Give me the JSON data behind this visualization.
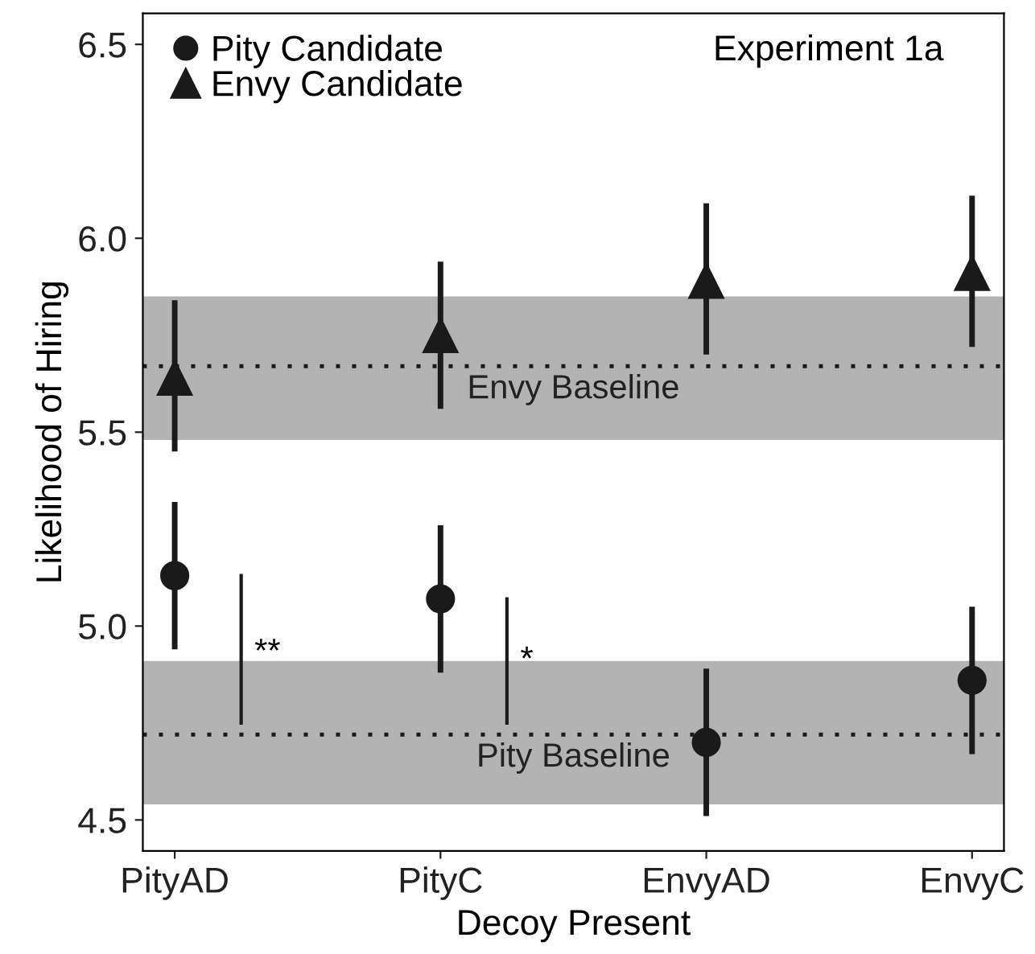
{
  "chart_data": {
    "type": "scatter",
    "title": "Experiment 1a",
    "xlabel": "Decoy Present",
    "ylabel": "Likelihood of Hiring",
    "categories": [
      "PityAD",
      "PityC",
      "EnvyAD",
      "EnvyC"
    ],
    "series": [
      {
        "name": "Pity Candidate",
        "color": "#1a1a1a",
        "marker": "circle",
        "values": [
          5.13,
          5.07,
          4.7,
          4.86
        ],
        "errors": [
          [
            4.94,
            5.32
          ],
          [
            4.88,
            5.26
          ],
          [
            4.51,
            4.89
          ],
          [
            4.67,
            5.05
          ]
        ]
      },
      {
        "name": "Envy Candidate",
        "color": "#1a1a1a",
        "marker": "triangle",
        "values": [
          5.64,
          5.75,
          5.89,
          5.91
        ],
        "errors": [
          [
            5.45,
            5.84
          ],
          [
            5.56,
            5.94
          ],
          [
            5.7,
            6.09
          ],
          [
            5.72,
            6.11
          ]
        ]
      }
    ],
    "ylim": [
      4.42,
      6.58
    ],
    "yticks": [
      4.5,
      {
        "value": 5,
        "label": "5.0"
      },
      5.5,
      {
        "value": 6,
        "label": "6.0"
      },
      6.5
    ],
    "ref_lines": [
      {
        "axis": "y",
        "value": 5.67,
        "label": "Envy Baseline",
        "color": "#1a1a1a",
        "line_style": "dotted"
      },
      {
        "axis": "y",
        "value": 4.72,
        "label": "Pity Baseline",
        "color": "#1a1a1a",
        "line_style": "dotted"
      }
    ],
    "bands": [
      {
        "axis": "y",
        "from": 5.48,
        "to": 5.85,
        "color": "#b3b3b3"
      },
      {
        "axis": "y",
        "from": 4.54,
        "to": 4.91,
        "color": "#b3b3b3"
      }
    ],
    "annotations": [
      {
        "text": "**",
        "x": "PityAD",
        "y": 4.93
      },
      {
        "text": "*",
        "x": "PityC",
        "y": 4.91
      }
    ],
    "legend": "top left",
    "grid": false
  }
}
